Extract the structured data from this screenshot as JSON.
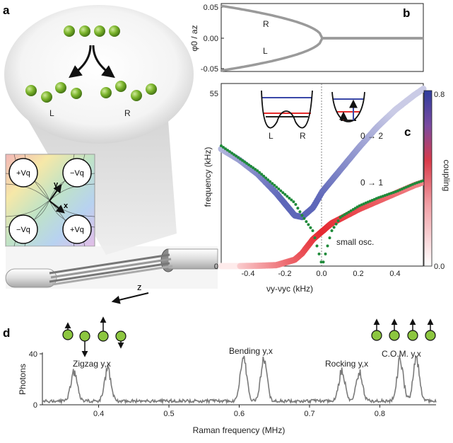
{
  "figure": {
    "panel_a": {
      "letter": "a",
      "label_left": "L",
      "label_right": "R",
      "electrodes": [
        "+Vq",
        "−Vq",
        "−Vq",
        "+Vq"
      ],
      "axis_y": "y",
      "axis_x": "x",
      "axis_z": "z"
    },
    "panel_b": {
      "letter": "b",
      "ylabel": "φ0 / az",
      "yticks": [
        "0.05",
        "0.00",
        "-0.05"
      ],
      "label_R": "R",
      "label_L": "L"
    },
    "panel_c": {
      "letter": "c",
      "ylabel": "frequency (kHz)",
      "xlabel": "νy-νyc (kHz)",
      "yticks": [
        "55",
        "0"
      ],
      "xticks": [
        "-0.4",
        "-0.2",
        "0.0",
        "0.2",
        "0.4"
      ],
      "annotation_02": "0 → 2",
      "annotation_01": "0 → 1",
      "annotation_small": "small osc.",
      "inset_L": "L",
      "inset_R": "R",
      "colorbar_label": "coupling",
      "colorbar_ticks": [
        "0.8",
        "0.0"
      ],
      "colors": {
        "blue": "#3a48a8",
        "red": "#e52a2a",
        "green_dots": "#1f8a3a"
      }
    },
    "panel_d": {
      "letter": "d",
      "ylabel": "Photons",
      "xlabel": "Raman frequency (MHz)",
      "yticks": [
        "40",
        "0"
      ],
      "xticks": [
        "0.4",
        "0.5",
        "0.6",
        "0.7",
        "0.8"
      ],
      "peak_labels": [
        "Zigzag y,x",
        "Bending y,x",
        "Rocking y,x",
        "C.O.M. y,x"
      ]
    }
  },
  "chart_data": [
    {
      "type": "line",
      "panel": "b",
      "xlabel": "",
      "ylabel": "φ0 / az",
      "ylim": [
        -0.06,
        0.06
      ],
      "x": [
        -1.0,
        -0.75,
        -0.5,
        -0.25,
        0.0,
        0.25,
        0.5,
        1.0
      ],
      "series": [
        {
          "name": "R",
          "values": [
            0.052,
            0.045,
            0.037,
            0.026,
            0.0,
            0.0,
            0.0,
            0.0
          ]
        },
        {
          "name": "L",
          "values": [
            -0.052,
            -0.045,
            -0.037,
            -0.026,
            0.0,
            0.0,
            0.0,
            0.0
          ]
        }
      ]
    },
    {
      "type": "line",
      "panel": "c",
      "xlabel": "νy-νyc (kHz)",
      "ylabel": "frequency (kHz)",
      "xlim": [
        -0.55,
        0.55
      ],
      "ylim": [
        0,
        55
      ],
      "x": [
        -0.55,
        -0.45,
        -0.35,
        -0.25,
        -0.15,
        -0.11,
        -0.05,
        0.0,
        0.05,
        0.1,
        0.2,
        0.3,
        0.4,
        0.5,
        0.55
      ],
      "series": [
        {
          "name": "0 → 2",
          "values": [
            37.0,
            33.5,
            29.0,
            23.0,
            16.0,
            15.5,
            18.5,
            23.5,
            27.0,
            30.5,
            37.5,
            44.0,
            49.5,
            54.0,
            56.0
          ]
        },
        {
          "name": "0 → 1",
          "values": [
            0.0,
            0.0,
            0.1,
            0.3,
            2.0,
            4.0,
            8.5,
            11.0,
            13.5,
            15.0,
            18.0,
            20.5,
            23.0,
            25.5,
            26.5
          ]
        },
        {
          "name": "small osc.",
          "values": [
            38.0,
            34.0,
            30.0,
            25.0,
            20.0,
            16.0,
            11.0,
            0.0,
            11.0,
            15.5,
            19.0,
            21.5,
            23.5,
            26.0,
            27.0
          ]
        }
      ]
    },
    {
      "type": "line",
      "panel": "d",
      "xlabel": "Raman frequency (MHz)",
      "ylabel": "Photons",
      "xlim": [
        0.32,
        0.88
      ],
      "ylim": [
        0,
        45
      ],
      "peaks": [
        {
          "label": "Zigzag y,x",
          "x": 0.365,
          "height": 24
        },
        {
          "label": "Zigzag y,x",
          "x": 0.413,
          "height": 24
        },
        {
          "label": "Bending y,x",
          "x": 0.606,
          "height": 35
        },
        {
          "label": "Bending y,x",
          "x": 0.635,
          "height": 32
        },
        {
          "label": "Rocking y,x",
          "x": 0.746,
          "height": 24
        },
        {
          "label": "Rocking y,x",
          "x": 0.771,
          "height": 23
        },
        {
          "label": "C.O.M. y,x",
          "x": 0.829,
          "height": 32
        },
        {
          "label": "C.O.M. y,x",
          "x": 0.852,
          "height": 32
        }
      ],
      "baseline": 3
    }
  ]
}
